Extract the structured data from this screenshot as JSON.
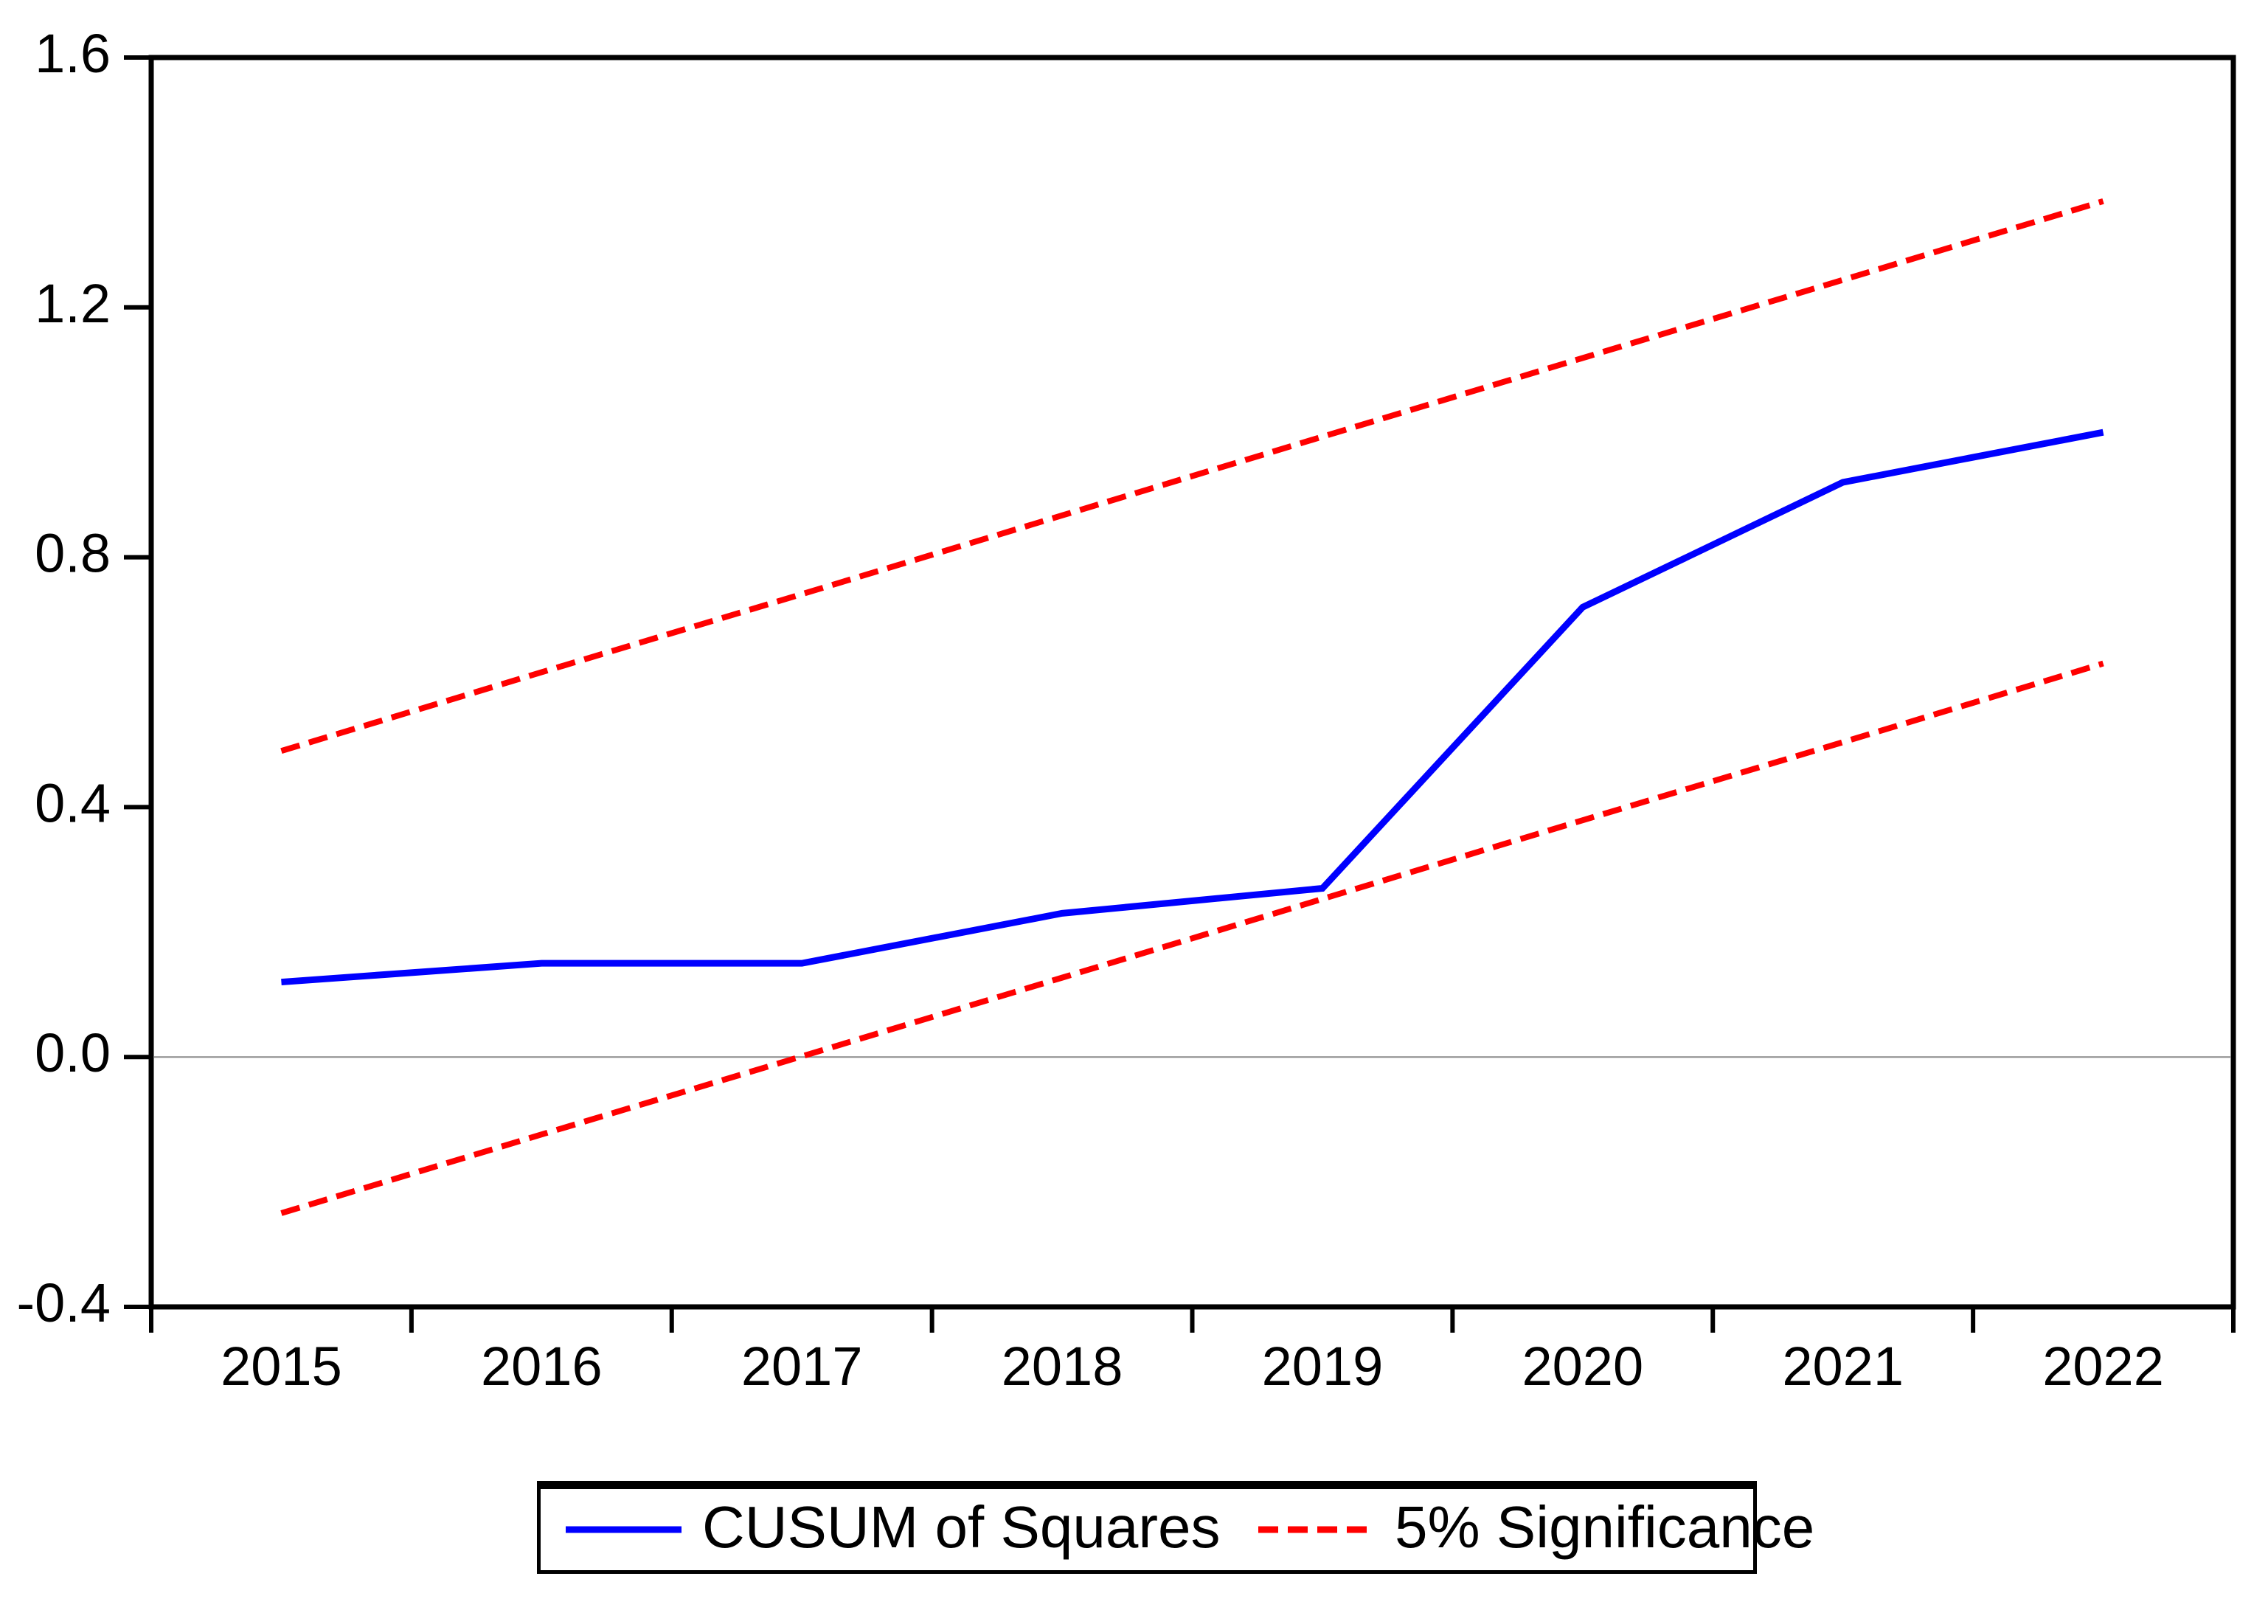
{
  "figure": {
    "background": "#ffffff",
    "axis_color": "#000000",
    "zero_line_color": "#8c8c8c"
  },
  "legend": {
    "items": [
      {
        "label": "CUSUM of Squares",
        "color": "#0000ff",
        "style": "solid"
      },
      {
        "label": "5% Significance",
        "color": "#ff0000",
        "style": "dashed"
      }
    ]
  },
  "chart_data": {
    "type": "line",
    "title": "",
    "xlabel": "",
    "ylabel": "",
    "x": [
      2015,
      2016,
      2017,
      2018,
      2019,
      2020,
      2021,
      2022
    ],
    "x_tick_labels": [
      "2015",
      "2016",
      "2017",
      "2018",
      "2019",
      "2020",
      "2021",
      "2022"
    ],
    "xlim": [
      2014.5,
      2022.5
    ],
    "y_ticks": [
      1.6,
      1.2,
      0.8,
      0.4,
      0.0,
      -0.4
    ],
    "y_tick_labels": [
      "1.6",
      "1.2",
      "0.8",
      "0.4",
      "0.0",
      "-0.4"
    ],
    "ylim": [
      -0.4,
      1.6
    ],
    "grid": "zero-line-only",
    "zero_line_y": 0.0,
    "legend_position": "bottom-center-boxed",
    "series": [
      {
        "name": "CUSUM of Squares",
        "color": "#0000ff",
        "dash": "solid",
        "values": [
          0.12,
          0.15,
          0.15,
          0.23,
          0.27,
          0.72,
          0.92,
          1.0
        ]
      },
      {
        "name": "5% Significance (upper bound)",
        "color": "#ff0000",
        "dash": "dashed",
        "values": [
          0.49,
          0.616,
          0.741,
          0.867,
          0.993,
          1.119,
          1.244,
          1.37
        ]
      },
      {
        "name": "5% Significance (lower bound)",
        "color": "#ff0000",
        "dash": "dashed",
        "values": [
          -0.25,
          -0.124,
          0.001,
          0.127,
          0.253,
          0.379,
          0.504,
          0.63
        ]
      }
    ]
  }
}
